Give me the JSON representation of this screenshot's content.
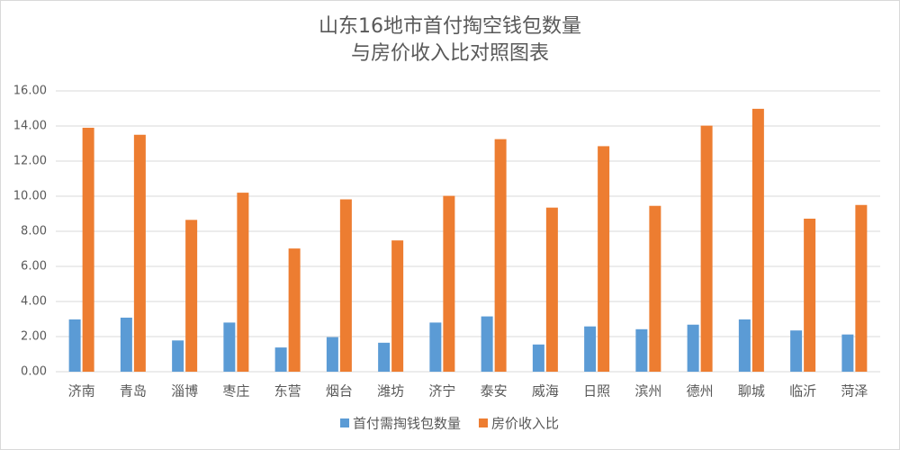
{
  "chart_data": {
    "type": "bar",
    "title": [
      "山东16地市首付掏空钱包数量",
      "与房价收入比对照图表"
    ],
    "categories": [
      "济南",
      "青岛",
      "淄博",
      "枣庄",
      "东营",
      "烟台",
      "潍坊",
      "济宁",
      "泰安",
      "威海",
      "日照",
      "滨州",
      "德州",
      "聊城",
      "临沂",
      "菏泽"
    ],
    "series": [
      {
        "name": "首付需掏钱包数量",
        "color": "#5b9bd5",
        "values": [
          2.98,
          3.08,
          1.78,
          2.8,
          1.38,
          1.97,
          1.65,
          2.8,
          3.15,
          1.55,
          2.58,
          2.42,
          2.68,
          2.98,
          2.35,
          2.12
        ]
      },
      {
        "name": "房价收入比",
        "color": "#ed7d31",
        "values": [
          13.9,
          13.5,
          8.65,
          10.2,
          7.02,
          9.82,
          7.48,
          10.02,
          13.25,
          9.35,
          12.85,
          9.45,
          14.02,
          14.98,
          8.72,
          9.5
        ]
      }
    ],
    "ylim": [
      0,
      16
    ],
    "yticks": [
      {
        "value": 0,
        "label": "0.00"
      },
      {
        "value": 2,
        "label": "2.00"
      },
      {
        "value": 4,
        "label": "4.00"
      },
      {
        "value": 6,
        "label": "6.00"
      },
      {
        "value": 8,
        "label": "8.00"
      },
      {
        "value": 10,
        "label": "10.00"
      },
      {
        "value": 12,
        "label": "12.00"
      },
      {
        "value": 14,
        "label": "14.00"
      },
      {
        "value": 16,
        "label": "16.00"
      }
    ],
    "grid": true,
    "legend": "bottom"
  }
}
